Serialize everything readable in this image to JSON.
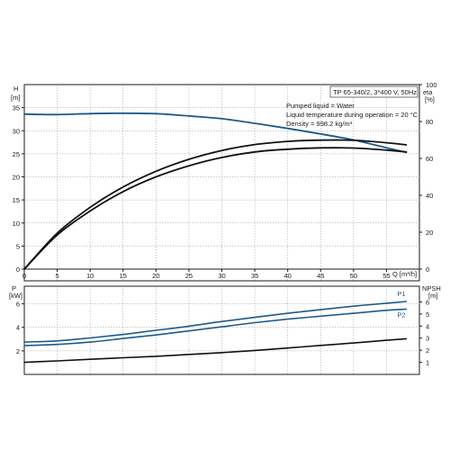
{
  "chart_data": [
    {
      "type": "line",
      "info_box": [
        "TP 65-340/2, 3*400 V, 50Hz",
        "Pumped liquid = Water",
        "Liquid temperature during operation = 20 °C",
        "Density = 998.2 kg/m³"
      ],
      "x_label": "Q [m³/h]",
      "x_ticks": [
        0,
        5,
        10,
        15,
        20,
        25,
        30,
        35,
        40,
        45,
        50,
        55
      ],
      "xlim": [
        0,
        60
      ],
      "y_left_label_name": "H",
      "y_left_label_unit": "[m]",
      "y_left_ticks": [
        0,
        5,
        10,
        15,
        20,
        25,
        30,
        35
      ],
      "y_left_lim": [
        0,
        40
      ],
      "y_right_label_name": "eta",
      "y_right_label_unit": "[%]",
      "y_right_ticks": [
        0,
        20,
        40,
        60,
        80,
        100
      ],
      "y_right_lim": [
        0,
        100
      ],
      "grid": true,
      "series": [
        {
          "axis": "left",
          "color": "#1d5a8a",
          "x": [
            0,
            5,
            10,
            15,
            20,
            25,
            30,
            35,
            40,
            45,
            50,
            55,
            58
          ],
          "values": [
            33.6,
            33.5,
            33.7,
            33.8,
            33.7,
            33.2,
            32.6,
            31.6,
            30.5,
            29.3,
            28.0,
            26.3,
            25.3
          ]
        },
        {
          "axis": "right",
          "color": "#111111",
          "x": [
            0,
            5,
            10,
            15,
            20,
            25,
            30,
            35,
            40,
            45,
            50,
            55,
            58
          ],
          "values": [
            0,
            19.5,
            33.5,
            44.5,
            53,
            59.5,
            64.3,
            67.5,
            69.2,
            69.9,
            69.8,
            68.5,
            67.3
          ]
        },
        {
          "axis": "right",
          "color": "#111111",
          "x": [
            0,
            5,
            10,
            15,
            20,
            25,
            30,
            35,
            40,
            45,
            50,
            55,
            58
          ],
          "values": [
            0,
            18.5,
            31.5,
            42,
            50,
            56,
            60.5,
            63.5,
            65,
            65.7,
            65.6,
            64.5,
            63.5
          ]
        }
      ]
    },
    {
      "type": "line",
      "y_left_label_name": "P",
      "y_left_label_unit": "[kW]",
      "y_left_ticks": [
        2,
        4,
        6
      ],
      "y_left_lim": [
        0,
        7.5
      ],
      "y_right_label_name": "NPSH",
      "y_right_label_unit": "[m]",
      "y_right_ticks": [
        1,
        2,
        3,
        4,
        5,
        6
      ],
      "y_right_lim": [
        0,
        7.3
      ],
      "xlim": [
        0,
        60
      ],
      "grid": true,
      "series": [
        {
          "name": "P1",
          "axis": "left",
          "color": "#1d5a8a",
          "x": [
            0,
            5,
            10,
            15,
            20,
            25,
            30,
            35,
            40,
            45,
            50,
            55,
            58
          ],
          "values": [
            2.75,
            2.85,
            3.1,
            3.4,
            3.75,
            4.1,
            4.5,
            4.85,
            5.2,
            5.5,
            5.8,
            6.05,
            6.2
          ]
        },
        {
          "name": "P2",
          "axis": "left",
          "color": "#1d5a8a",
          "x": [
            0,
            5,
            10,
            15,
            20,
            25,
            30,
            35,
            40,
            45,
            50,
            55,
            58
          ],
          "values": [
            2.45,
            2.55,
            2.75,
            3.05,
            3.35,
            3.7,
            4.05,
            4.4,
            4.7,
            4.95,
            5.2,
            5.45,
            5.55
          ]
        },
        {
          "axis": "right",
          "color": "#111111",
          "x": [
            0,
            5,
            10,
            15,
            20,
            25,
            30,
            35,
            40,
            45,
            50,
            55,
            58
          ],
          "values": [
            1.0,
            1.12,
            1.25,
            1.38,
            1.5,
            1.65,
            1.8,
            1.98,
            2.18,
            2.4,
            2.6,
            2.82,
            2.95
          ]
        }
      ]
    }
  ]
}
